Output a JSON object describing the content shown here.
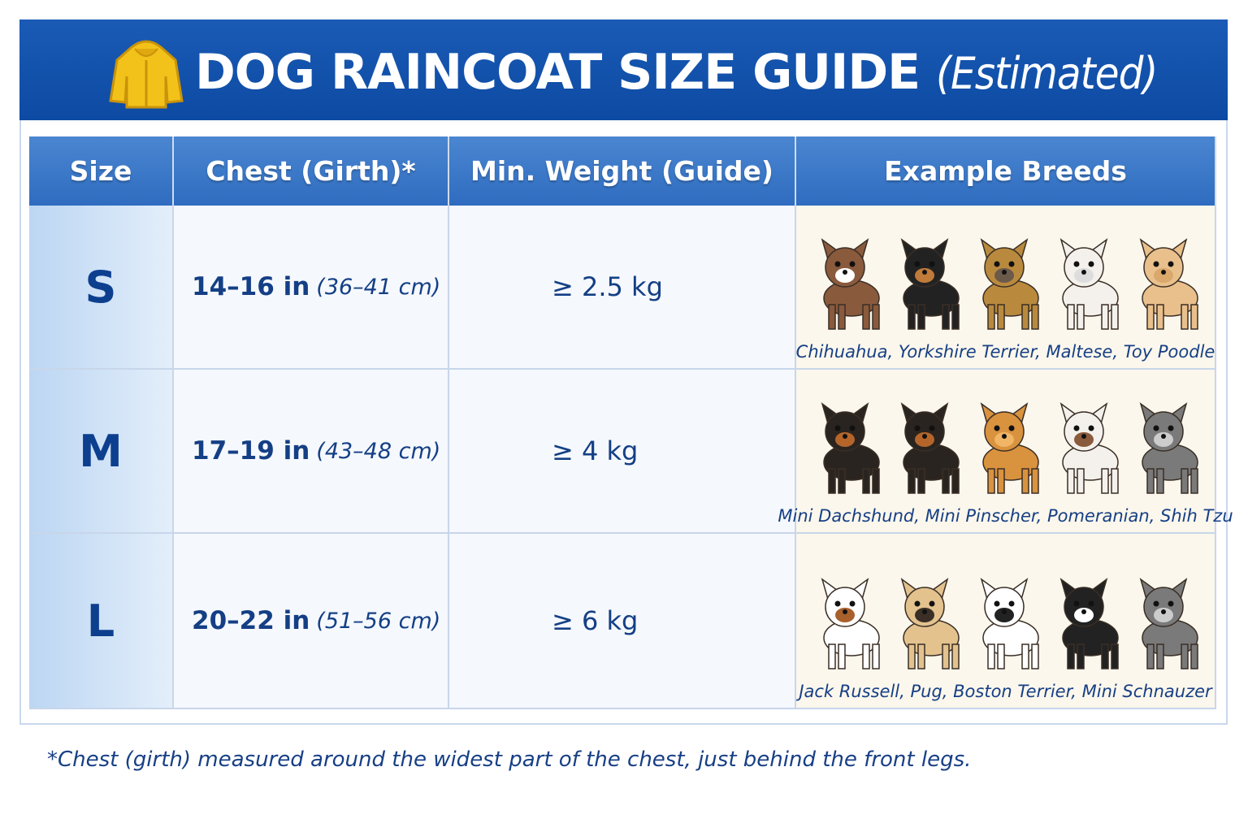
{
  "header": {
    "title": "DOG RAINCOAT SIZE GUIDE",
    "subtitle": "(Estimated)"
  },
  "table": {
    "columns": [
      "Size",
      "Chest (Girth)*",
      "Min. Weight (Guide)",
      "Example Breeds"
    ],
    "rows": [
      {
        "size": "S",
        "chest": "14–16 in",
        "chest_metric": "(36–41 cm)",
        "weight": "≥ 2.5 kg",
        "breeds": "Chihuahua, Yorkshire Terrier, Maltese, Toy Poodle"
      },
      {
        "size": "M",
        "chest": "17–19 in",
        "chest_metric": "(43–48 cm)",
        "weight": "≥ 4 kg",
        "breeds": "Mini Dachshund, Mini Pinscher, Pomeranian, Shih Tzu"
      },
      {
        "size": "L",
        "chest": "20–22 in",
        "chest_metric": "(51–56 cm)",
        "weight": "≥ 6 kg",
        "breeds": "Jack Russell, Pug, Boston Terrier, Mini Schnauzer"
      }
    ]
  },
  "footnote": "*Chest (girth) measured around the widest part of the chest, just behind the front legs."
}
